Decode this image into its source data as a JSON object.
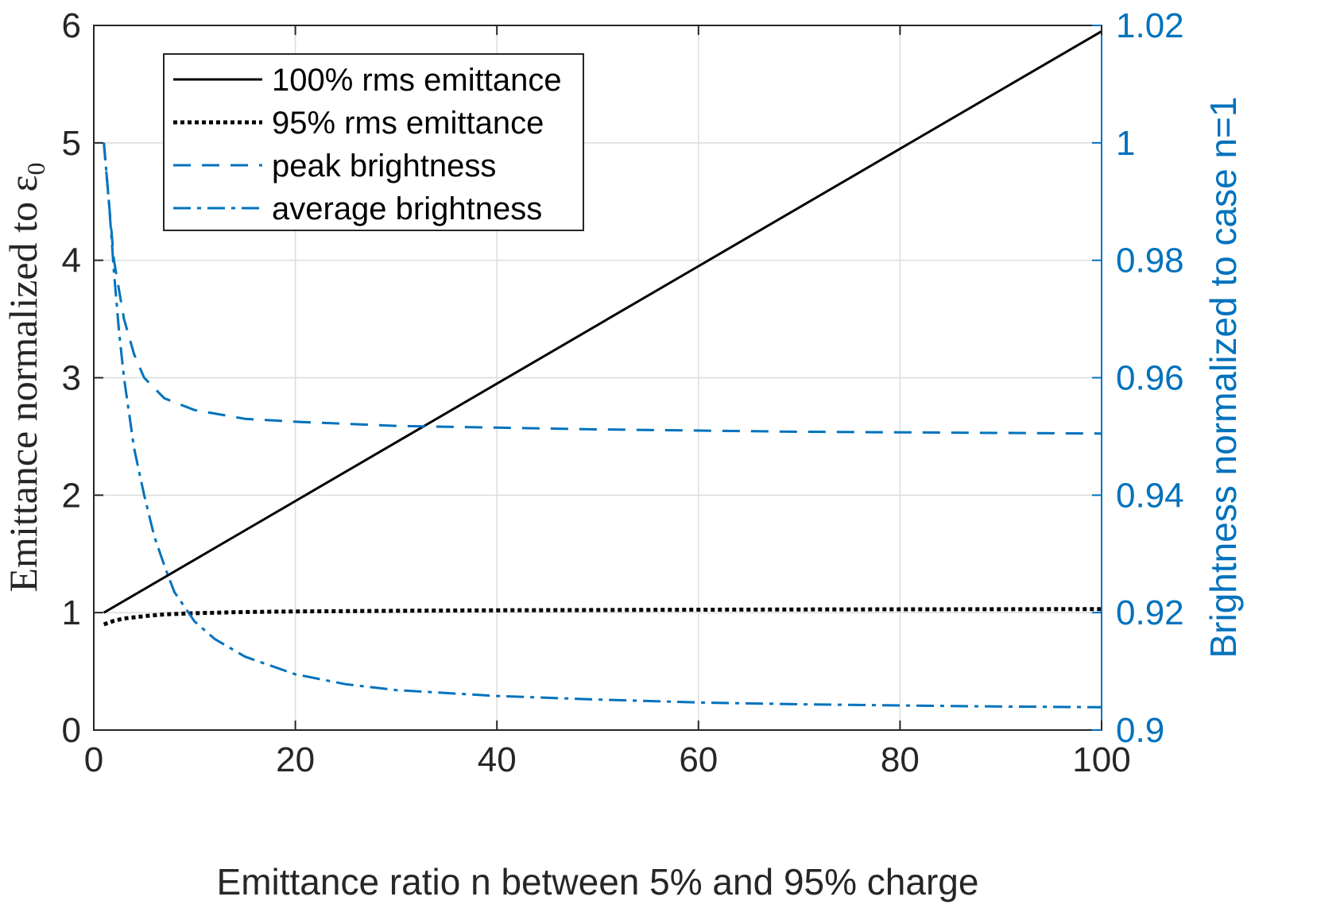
{
  "chart_data": {
    "type": "line",
    "x_axis": {
      "label": "Emittance ratio n between 5% and 95% charge",
      "range": [
        0,
        100
      ],
      "ticks": [
        0,
        20,
        40,
        60,
        80,
        100
      ],
      "tick_labels": [
        "0",
        "20",
        "40",
        "60",
        "80",
        "100"
      ]
    },
    "y_left": {
      "label": "Emittance normalized to ε",
      "label_subscript": "0",
      "range": [
        0,
        6
      ],
      "ticks": [
        0,
        1,
        2,
        3,
        4,
        5,
        6
      ],
      "tick_labels": [
        "0",
        "1",
        "2",
        "3",
        "4",
        "5",
        "6"
      ]
    },
    "y_right": {
      "label": "Brightness normalized to case n=1",
      "range": [
        0.9,
        1.02
      ],
      "ticks": [
        0.9,
        0.92,
        0.94,
        0.96,
        0.98,
        1.0,
        1.02
      ],
      "tick_labels": [
        "0.9",
        "0.92",
        "0.94",
        "0.96",
        "0.98",
        "1",
        "1.02"
      ],
      "color": "#0072BD"
    },
    "grid": true,
    "legend_position": "top-left",
    "series": [
      {
        "name": "100% rms emittance",
        "axis": "left",
        "style": "solid",
        "color": "#000000",
        "x": [
          1,
          100
        ],
        "y": [
          1.0,
          5.95
        ]
      },
      {
        "name": "95% rms emittance",
        "axis": "left",
        "style": "dotted",
        "color": "#000000",
        "x": [
          1,
          2,
          3,
          5,
          7,
          10,
          15,
          20,
          30,
          40,
          50,
          60,
          70,
          80,
          90,
          100
        ],
        "y": [
          0.9,
          0.93,
          0.95,
          0.97,
          0.985,
          0.995,
          1.005,
          1.01,
          1.015,
          1.02,
          1.022,
          1.025,
          1.027,
          1.028,
          1.029,
          1.03
        ]
      },
      {
        "name": "peak brightness",
        "axis": "right",
        "style": "dashed",
        "color": "#0072BD",
        "x": [
          1,
          1.5,
          2,
          3,
          4,
          5,
          7,
          10,
          15,
          20,
          30,
          40,
          50,
          60,
          70,
          80,
          90,
          100
        ],
        "y": [
          1.0,
          0.99,
          0.98,
          0.97,
          0.964,
          0.96,
          0.9565,
          0.9545,
          0.953,
          0.9525,
          0.9518,
          0.9515,
          0.9512,
          0.951,
          0.9508,
          0.9507,
          0.9506,
          0.9505
        ]
      },
      {
        "name": "average brightness",
        "axis": "right",
        "style": "dashdot",
        "color": "#0072BD",
        "x": [
          1,
          1.5,
          2,
          2.5,
          3,
          4,
          5,
          6,
          7,
          8,
          10,
          12,
          15,
          20,
          25,
          30,
          40,
          50,
          60,
          70,
          80,
          90,
          100
        ],
        "y": [
          1.0,
          0.99,
          0.978,
          0.968,
          0.96,
          0.948,
          0.94,
          0.933,
          0.928,
          0.9235,
          0.9185,
          0.9155,
          0.9125,
          0.9095,
          0.9078,
          0.9068,
          0.9058,
          0.9052,
          0.9047,
          0.9044,
          0.9042,
          0.904,
          0.9039
        ]
      }
    ]
  }
}
